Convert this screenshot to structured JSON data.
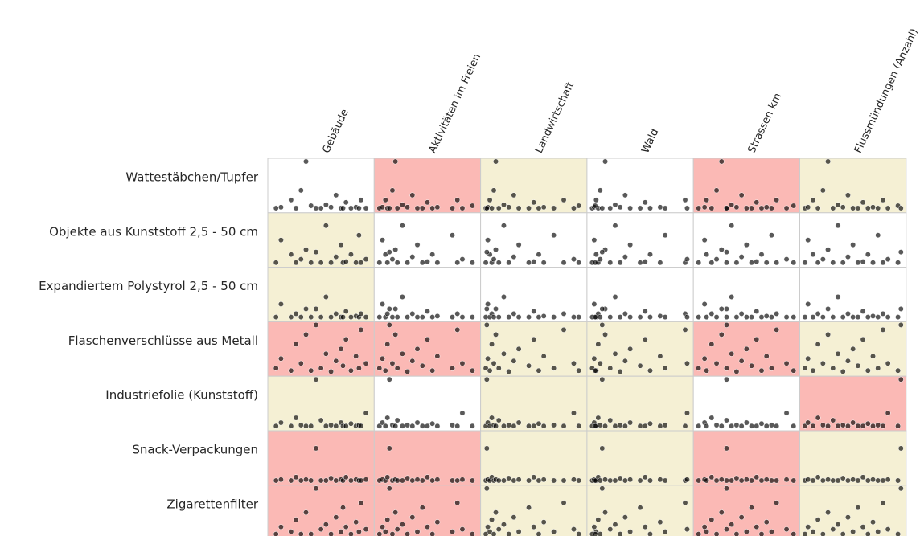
{
  "chart_data": {
    "type": "scatter",
    "xlim": [
      0,
      1
    ],
    "ylim": [
      0,
      1
    ],
    "point_color": "#000000",
    "columns": [
      {
        "name": "Gebäude",
        "x": [
          0.05,
          0.1,
          0.2,
          0.25,
          0.3,
          0.35,
          0.5,
          0.55,
          0.6,
          0.65,
          0.7,
          0.72,
          0.75,
          0.8,
          0.85,
          0.88,
          0.9,
          0.95,
          0.4,
          0.45
        ]
      },
      {
        "name": "Aktivitäten im Freien",
        "x": [
          0.02,
          0.05,
          0.08,
          0.1,
          0.15,
          0.18,
          0.2,
          0.25,
          0.3,
          0.35,
          0.4,
          0.45,
          0.5,
          0.55,
          0.6,
          0.75,
          0.8,
          0.85,
          0.95,
          0.12
        ]
      },
      {
        "name": "Landwirtschaft",
        "x": [
          0.02,
          0.04,
          0.06,
          0.08,
          0.1,
          0.12,
          0.15,
          0.2,
          0.25,
          0.3,
          0.35,
          0.45,
          0.5,
          0.55,
          0.6,
          0.7,
          0.8,
          0.9,
          0.95,
          0.03
        ]
      },
      {
        "name": "Wald",
        "x": [
          0.02,
          0.04,
          0.06,
          0.08,
          0.1,
          0.15,
          0.2,
          0.25,
          0.3,
          0.35,
          0.4,
          0.5,
          0.55,
          0.6,
          0.7,
          0.75,
          0.95,
          0.97,
          0.05,
          0.12
        ]
      },
      {
        "name": "Strassen km",
        "x": [
          0.02,
          0.08,
          0.1,
          0.15,
          0.2,
          0.25,
          0.3,
          0.35,
          0.4,
          0.45,
          0.5,
          0.55,
          0.6,
          0.65,
          0.7,
          0.75,
          0.8,
          0.9,
          0.97,
          0.3
        ]
      },
      {
        "name": "Flussmündungen (Anzahl)",
        "x": [
          0.02,
          0.05,
          0.1,
          0.15,
          0.2,
          0.25,
          0.3,
          0.35,
          0.4,
          0.45,
          0.5,
          0.55,
          0.6,
          0.65,
          0.7,
          0.75,
          0.8,
          0.85,
          0.95,
          0.98
        ]
      }
    ],
    "rows": [
      {
        "name": "Wattestäbchen/Tupfer",
        "y": [
          0.03,
          0.05,
          0.2,
          0.03,
          0.4,
          1.0,
          0.03,
          0.1,
          0.05,
          0.3,
          0.03,
          0.03,
          0.15,
          0.03,
          0.05,
          0.03,
          0.2,
          0.03,
          0.08,
          0.03
        ]
      },
      {
        "name": "Objekte aus Kunststoff 2,5 - 50 cm",
        "y": [
          0.03,
          0.5,
          0.2,
          0.03,
          0.1,
          0.3,
          0.03,
          0.8,
          0.03,
          0.15,
          0.4,
          0.03,
          0.05,
          0.2,
          0.03,
          0.6,
          0.03,
          0.1,
          0.03,
          0.25
        ]
      },
      {
        "name": "Expandiertem Polystyrol 2,5 - 50 cm",
        "y": [
          0.03,
          0.3,
          0.03,
          0.1,
          0.03,
          0.2,
          0.03,
          0.45,
          0.03,
          0.1,
          0.03,
          0.03,
          0.15,
          0.03,
          0.05,
          0.03,
          0.1,
          0.03,
          0.03,
          0.2
        ]
      },
      {
        "name": "Flaschenverschlüsse aus Metall",
        "y": [
          0.1,
          0.3,
          0.05,
          0.6,
          0.2,
          0.8,
          0.1,
          0.4,
          0.03,
          0.25,
          0.5,
          0.15,
          0.7,
          0.05,
          0.35,
          0.1,
          0.9,
          0.2,
          0.05,
          1.0
        ]
      },
      {
        "name": "Industriefolie (Kunststoff)",
        "y": [
          0.03,
          0.1,
          0.03,
          0.2,
          0.05,
          0.03,
          0.15,
          0.03,
          0.05,
          0.03,
          0.1,
          0.03,
          0.03,
          0.08,
          0.03,
          0.05,
          0.03,
          0.3,
          0.03,
          1.0
        ]
      },
      {
        "name": "Snack-Verpackungen",
        "y": [
          0.03,
          0.05,
          0.03,
          0.1,
          0.03,
          0.05,
          0.03,
          0.03,
          0.08,
          0.03,
          0.05,
          0.03,
          0.1,
          0.03,
          0.05,
          0.03,
          0.03,
          0.05,
          0.03,
          0.7
        ]
      },
      {
        "name": "Zigarettenfilter",
        "y": [
          0.05,
          0.2,
          0.1,
          0.35,
          0.05,
          0.5,
          0.15,
          0.25,
          0.05,
          0.4,
          0.1,
          0.6,
          0.2,
          0.05,
          0.3,
          0.1,
          0.7,
          0.15,
          0.05,
          1.0
        ]
      }
    ],
    "cell_colors": [
      [
        "#ffffff",
        "#fbb9b5",
        "#f5f0d4",
        "#ffffff",
        "#fbb9b5",
        "#f5f0d4"
      ],
      [
        "#f5f0d4",
        "#ffffff",
        "#ffffff",
        "#ffffff",
        "#ffffff",
        "#ffffff"
      ],
      [
        "#f5f0d4",
        "#ffffff",
        "#ffffff",
        "#ffffff",
        "#ffffff",
        "#ffffff"
      ],
      [
        "#fbb9b5",
        "#fbb9b5",
        "#f5f0d4",
        "#f5f0d4",
        "#fbb9b5",
        "#f5f0d4"
      ],
      [
        "#f5f0d4",
        "#ffffff",
        "#f5f0d4",
        "#f5f0d4",
        "#ffffff",
        "#fbb9b5"
      ],
      [
        "#fbb9b5",
        "#fbb9b5",
        "#f5f0d4",
        "#f5f0d4",
        "#fbb9b5",
        "#f5f0d4"
      ],
      [
        "#fbb9b5",
        "#fbb9b5",
        "#f5f0d4",
        "#f5f0d4",
        "#fbb9b5",
        "#f5f0d4"
      ]
    ]
  }
}
